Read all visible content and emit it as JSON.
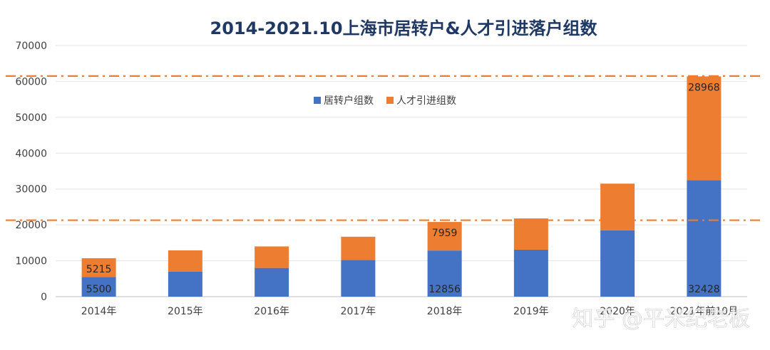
{
  "chart_data": {
    "type": "bar",
    "stacked": true,
    "title": "2014-2021.10上海市居转户&人才引进落户组数",
    "categories": [
      "2014年",
      "2015年",
      "2016年",
      "2017年",
      "2018年",
      "2019年",
      "2020年",
      "2021年前10月"
    ],
    "series": [
      {
        "name": "居转户组数",
        "color": "#4472c4",
        "values": [
          5500,
          7000,
          8000,
          10200,
          12856,
          13100,
          18500,
          32428
        ],
        "data_labels": [
          "5500",
          "",
          "",
          "",
          "12856",
          "",
          "",
          "32428"
        ]
      },
      {
        "name": "人才引进组数",
        "color": "#ed7d31",
        "values": [
          5215,
          5900,
          6000,
          6500,
          7959,
          8700,
          13000,
          28968
        ],
        "data_labels": [
          "5215",
          "",
          "",
          "",
          "7959",
          "",
          "",
          "28968"
        ]
      }
    ],
    "ylim": [
      0,
      70000
    ],
    "yticks": [
      "0",
      "10000",
      "20000",
      "30000",
      "40000",
      "50000",
      "60000",
      "70000"
    ],
    "grid": true,
    "legend_position": "top-center",
    "reference_lines": [
      {
        "value": 61500,
        "color": "#ed7d31",
        "style": "dash-dot"
      },
      {
        "value": 21300,
        "color": "#ed7d31",
        "style": "dash-dot"
      }
    ],
    "xlabel": "",
    "ylabel": ""
  },
  "watermark": "知乎 @平米纪老板"
}
